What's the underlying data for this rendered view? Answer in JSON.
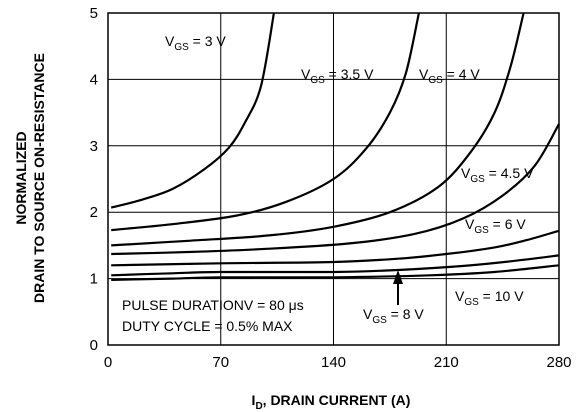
{
  "chart_data": {
    "type": "line",
    "xlabel_main": "I",
    "xlabel_sub": "D",
    "xlabel_rest": ", DRAIN CURRENT (A)",
    "ylabel_line1": "NORMALIZED",
    "ylabel_line2": "DRAIN TO SOURCE ON-RESISTANCE",
    "xlim": [
      0,
      280
    ],
    "ylim": [
      0,
      5
    ],
    "xticks": [
      0,
      70,
      140,
      210,
      280
    ],
    "yticks": [
      0,
      1,
      2,
      3,
      4,
      5
    ],
    "grid": true,
    "annotations": {
      "line1": "PULSE DURATIONV = 80 μs",
      "line2": "DUTY CYCLE = 0.5% MAX"
    },
    "series": [
      {
        "name": "V_GS = 3 V",
        "label_main": "V",
        "label_sub": "GS",
        "label_rest": " = 3 V",
        "x": [
          2,
          20,
          40,
          60,
          75,
          85,
          95,
          103
        ],
        "y": [
          2.07,
          2.18,
          2.35,
          2.65,
          2.97,
          3.35,
          3.9,
          5.0
        ]
      },
      {
        "name": "V_GS = 3.5 V",
        "label_main": "V",
        "label_sub": "GS",
        "label_rest": " = 3.5 V",
        "x": [
          2,
          40,
          80,
          110,
          140,
          160,
          175,
          185,
          193
        ],
        "y": [
          1.73,
          1.82,
          1.95,
          2.15,
          2.5,
          2.95,
          3.5,
          4.1,
          5.0
        ]
      },
      {
        "name": "V_GS = 4 V",
        "label_main": "V",
        "label_sub": "GS",
        "label_rest": " = 4 V",
        "x": [
          2,
          50,
          100,
          140,
          175,
          205,
          225,
          240,
          250,
          258
        ],
        "y": [
          1.5,
          1.57,
          1.65,
          1.78,
          2.0,
          2.38,
          2.9,
          3.5,
          4.2,
          5.0
        ]
      },
      {
        "name": "V_GS = 4.5 V",
        "label_main": "V",
        "label_sub": "GS",
        "label_rest": " = 4.5 V",
        "x": [
          2,
          50,
          100,
          150,
          190,
          220,
          245,
          265,
          280
        ],
        "y": [
          1.37,
          1.4,
          1.45,
          1.53,
          1.67,
          1.9,
          2.25,
          2.7,
          3.33
        ]
      },
      {
        "name": "V_GS = 6 V",
        "label_main": "V",
        "label_sub": "GS",
        "label_rest": " = 6 V",
        "x": [
          2,
          70,
          140,
          180,
          210,
          240,
          260,
          280
        ],
        "y": [
          1.2,
          1.23,
          1.25,
          1.3,
          1.37,
          1.47,
          1.58,
          1.72
        ]
      },
      {
        "name": "V_GS = 8 V",
        "label_main": "V",
        "label_sub": "GS",
        "label_rest": " = 8 V",
        "x": [
          2,
          40,
          70,
          140,
          180,
          220,
          250,
          280
        ],
        "y": [
          1.05,
          1.08,
          1.1,
          1.1,
          1.13,
          1.19,
          1.26,
          1.35
        ]
      },
      {
        "name": "V_GS = 10 V",
        "label_main": "V",
        "label_sub": "GS",
        "label_rest": " = 10 V",
        "x": [
          2,
          40,
          70,
          140,
          200,
          240,
          280
        ],
        "y": [
          0.98,
          1.0,
          1.02,
          1.02,
          1.05,
          1.1,
          1.2
        ]
      }
    ]
  }
}
